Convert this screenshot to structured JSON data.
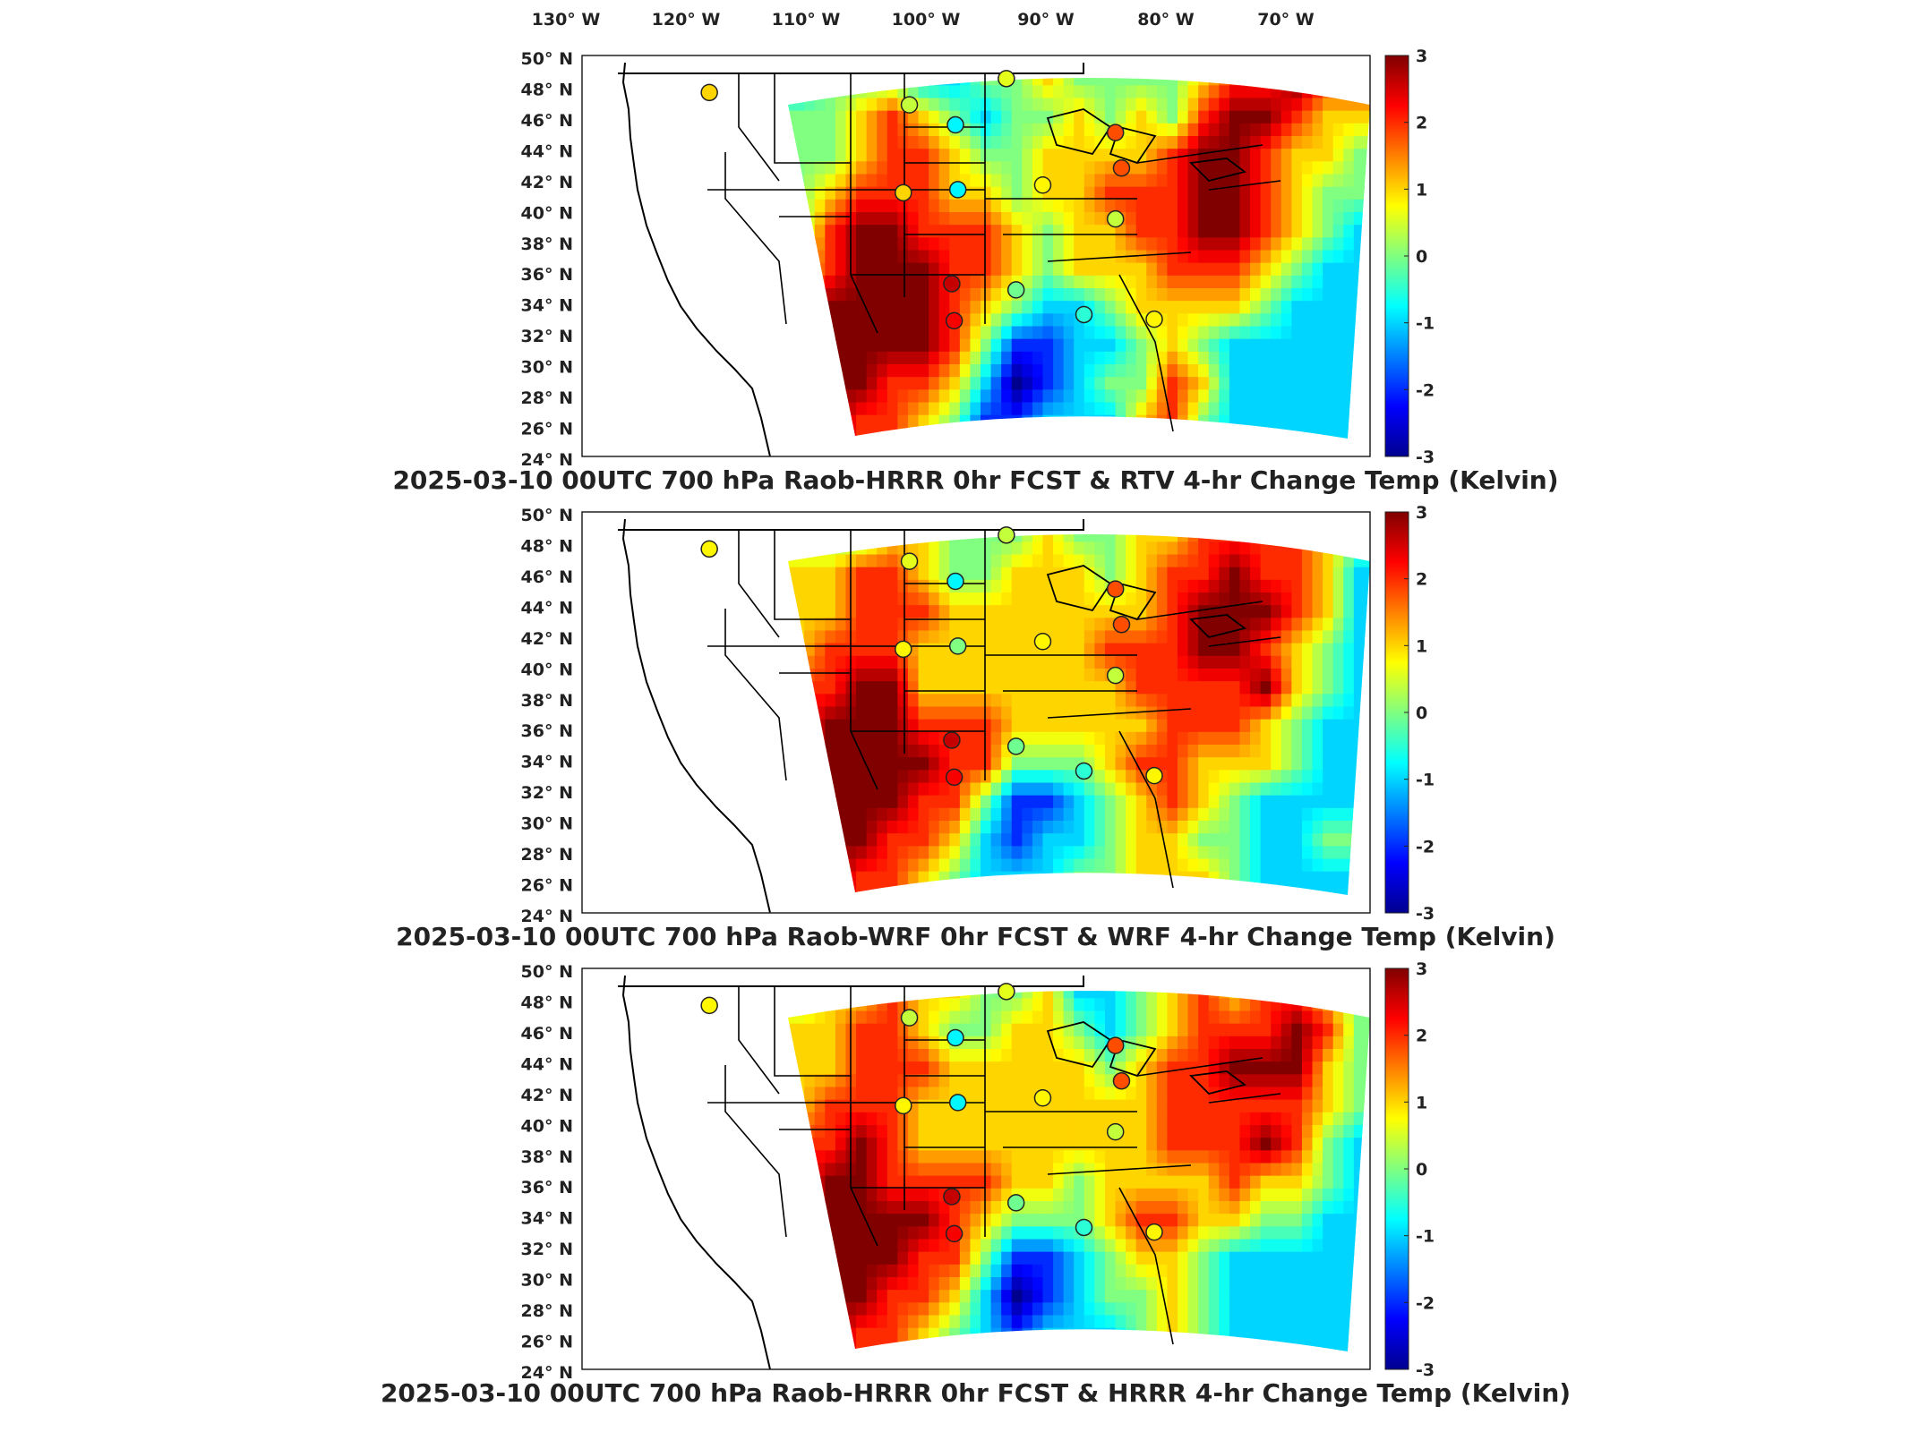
{
  "lon_labels": [
    "130° W",
    "120° W",
    "110° W",
    "100° W",
    "90° W",
    "80° W",
    "70° W"
  ],
  "lat_labels": [
    "50° N",
    "48° N",
    "46° N",
    "44° N",
    "42° N",
    "40° N",
    "38° N",
    "36° N",
    "34° N",
    "32° N",
    "30° N",
    "28° N",
    "26° N",
    "24° N"
  ],
  "colorbar": {
    "ticks": [
      "3",
      "2",
      "1",
      "0",
      "-1",
      "-2",
      "-3"
    ],
    "min": -3,
    "max": 3,
    "colors": [
      "#00008f",
      "#0000ff",
      "#0080ff",
      "#00ffff",
      "#80ff80",
      "#ffff00",
      "#ff8000",
      "#ff0000",
      "#800000"
    ]
  },
  "panels": [
    {
      "title": "2025-03-10 00UTC 700 hPa Raob-HRRR 0hr FCST & RTV 4-hr Change Temp (Kelvin)",
      "field": [
        [
          -1,
          0,
          0,
          0,
          -1,
          -1,
          0,
          0,
          1,
          0,
          0,
          0,
          0,
          1,
          2,
          2,
          3,
          2,
          2
        ],
        [
          0,
          0,
          1,
          2,
          1,
          0,
          -1,
          0,
          0,
          1,
          0,
          1,
          0,
          2,
          3,
          3,
          2,
          1,
          1
        ],
        [
          0,
          0,
          1,
          2,
          2,
          1,
          0,
          0,
          1,
          1,
          1,
          1,
          2,
          3,
          3,
          2,
          1,
          1,
          0
        ],
        [
          0,
          1,
          2,
          2,
          2,
          1,
          1,
          0,
          1,
          1,
          2,
          2,
          2,
          3,
          3,
          2,
          1,
          0,
          0
        ],
        [
          0,
          2,
          3,
          3,
          2,
          2,
          2,
          1,
          0,
          1,
          1,
          2,
          2,
          3,
          3,
          2,
          1,
          0,
          -1
        ],
        [
          1,
          2,
          3,
          3,
          3,
          2,
          2,
          1,
          0,
          1,
          1,
          1,
          2,
          2,
          2,
          1,
          0,
          -1,
          -1
        ],
        [
          2,
          3,
          3,
          3,
          3,
          2,
          1,
          0,
          -1,
          -1,
          0,
          1,
          1,
          1,
          1,
          0,
          -1,
          -1,
          -1
        ],
        [
          2,
          3,
          3,
          3,
          3,
          2,
          0,
          -2,
          -2,
          -1,
          -1,
          0,
          1,
          0,
          -1,
          -1,
          -1,
          -1,
          -1
        ],
        [
          2,
          3,
          3,
          2,
          2,
          1,
          -1,
          -3,
          -2,
          -1,
          0,
          0,
          2,
          1,
          -1,
          -1,
          -1,
          -1,
          -1
        ],
        [
          3,
          3,
          2,
          2,
          1,
          0,
          -2,
          -2,
          -1,
          -1,
          -1,
          1,
          2,
          0,
          -1,
          -1,
          -1,
          -1,
          -1
        ]
      ],
      "stations": [
        {
          "lon": -117.5,
          "lat": 47.6,
          "v": 1.0
        },
        {
          "lon": -101.0,
          "lat": 46.8,
          "v": 0.4
        },
        {
          "lon": -97.2,
          "lat": 45.5,
          "v": -0.8
        },
        {
          "lon": -93.0,
          "lat": 48.5,
          "v": 0.6
        },
        {
          "lon": -101.5,
          "lat": 41.1,
          "v": 1.0
        },
        {
          "lon": -97.0,
          "lat": 41.3,
          "v": -0.8
        },
        {
          "lon": -90.0,
          "lat": 41.6,
          "v": 0.8
        },
        {
          "lon": -84.0,
          "lat": 45.0,
          "v": 1.8
        },
        {
          "lon": -83.5,
          "lat": 42.7,
          "v": 1.8
        },
        {
          "lon": -84.0,
          "lat": 39.4,
          "v": 0.4
        },
        {
          "lon": -97.5,
          "lat": 35.2,
          "v": 2.6
        },
        {
          "lon": -97.3,
          "lat": 32.8,
          "v": 2.3
        },
        {
          "lon": -92.2,
          "lat": 34.8,
          "v": -0.1
        },
        {
          "lon": -86.6,
          "lat": 33.2,
          "v": -0.5
        },
        {
          "lon": -80.8,
          "lat": 32.9,
          "v": 0.8
        }
      ]
    },
    {
      "title": "2025-03-10 00UTC 700 hPa Raob-WRF 0hr FCST & WRF 4-hr Change Temp (Kelvin)",
      "field": [
        [
          0,
          0,
          0,
          1,
          1,
          0,
          0,
          0,
          1,
          0,
          0,
          1,
          1,
          2,
          2,
          2,
          2,
          1,
          0
        ],
        [
          1,
          1,
          2,
          2,
          1,
          0,
          0,
          1,
          1,
          1,
          0,
          1,
          2,
          2,
          3,
          2,
          2,
          1,
          -1
        ],
        [
          1,
          1,
          2,
          2,
          2,
          1,
          1,
          1,
          1,
          1,
          1,
          1,
          2,
          3,
          3,
          3,
          2,
          1,
          -1
        ],
        [
          1,
          2,
          2,
          2,
          1,
          1,
          1,
          1,
          1,
          1,
          2,
          2,
          2,
          3,
          3,
          2,
          1,
          0,
          -1
        ],
        [
          2,
          2,
          3,
          3,
          1,
          1,
          1,
          1,
          1,
          1,
          1,
          2,
          2,
          2,
          2,
          3,
          1,
          0,
          -1
        ],
        [
          2,
          3,
          3,
          3,
          2,
          2,
          2,
          1,
          1,
          1,
          1,
          1,
          2,
          2,
          2,
          1,
          0,
          -1,
          -1
        ],
        [
          2,
          3,
          3,
          3,
          3,
          2,
          2,
          0,
          0,
          0,
          1,
          2,
          2,
          1,
          1,
          1,
          0,
          -1,
          -1
        ],
        [
          2,
          3,
          3,
          3,
          2,
          2,
          0,
          -2,
          -2,
          -1,
          0,
          1,
          2,
          1,
          0,
          -1,
          -1,
          -1,
          -1
        ],
        [
          2,
          3,
          3,
          2,
          2,
          1,
          -1,
          -2,
          -1,
          -1,
          0,
          1,
          1,
          0,
          0,
          -1,
          -1,
          0,
          0
        ],
        [
          3,
          3,
          2,
          2,
          1,
          0,
          -1,
          -1,
          -1,
          0,
          0,
          1,
          1,
          1,
          0,
          -1,
          -1,
          -1,
          -1
        ]
      ],
      "stations": [
        {
          "lon": -117.5,
          "lat": 47.6,
          "v": 0.8
        },
        {
          "lon": -101.0,
          "lat": 46.8,
          "v": 0.6
        },
        {
          "lon": -97.2,
          "lat": 45.5,
          "v": -0.8
        },
        {
          "lon": -93.0,
          "lat": 48.5,
          "v": 0.4
        },
        {
          "lon": -101.5,
          "lat": 41.1,
          "v": 0.8
        },
        {
          "lon": -97.0,
          "lat": 41.3,
          "v": 0.0
        },
        {
          "lon": -90.0,
          "lat": 41.6,
          "v": 0.8
        },
        {
          "lon": -84.0,
          "lat": 45.0,
          "v": 1.8
        },
        {
          "lon": -83.5,
          "lat": 42.7,
          "v": 1.8
        },
        {
          "lon": -84.0,
          "lat": 39.4,
          "v": 0.4
        },
        {
          "lon": -97.5,
          "lat": 35.2,
          "v": 2.6
        },
        {
          "lon": -97.3,
          "lat": 32.8,
          "v": 2.3
        },
        {
          "lon": -92.2,
          "lat": 34.8,
          "v": -0.1
        },
        {
          "lon": -86.6,
          "lat": 33.2,
          "v": -0.5
        },
        {
          "lon": -80.8,
          "lat": 32.9,
          "v": 0.8
        }
      ]
    },
    {
      "title": "2025-03-10 00UTC 700 hPa Raob-HRRR 0hr FCST & HRRR 4-hr Change Temp (Kelvin)",
      "field": [
        [
          0,
          1,
          1,
          2,
          1,
          1,
          0,
          0,
          1,
          -1,
          -1,
          0,
          1,
          2,
          1,
          2,
          2,
          1,
          0
        ],
        [
          1,
          1,
          2,
          2,
          1,
          0,
          0,
          1,
          1,
          0,
          -1,
          0,
          1,
          2,
          2,
          2,
          3,
          2,
          0
        ],
        [
          1,
          1,
          2,
          2,
          2,
          1,
          1,
          1,
          1,
          1,
          0,
          1,
          2,
          2,
          3,
          3,
          3,
          1,
          0
        ],
        [
          1,
          2,
          2,
          2,
          1,
          1,
          1,
          1,
          1,
          1,
          1,
          1,
          2,
          2,
          2,
          2,
          2,
          1,
          0
        ],
        [
          2,
          2,
          3,
          2,
          1,
          1,
          1,
          1,
          1,
          1,
          1,
          1,
          2,
          2,
          2,
          3,
          2,
          0,
          -1
        ],
        [
          2,
          3,
          3,
          2,
          2,
          2,
          2,
          1,
          1,
          0,
          1,
          1,
          1,
          1,
          2,
          1,
          1,
          0,
          -1
        ],
        [
          2,
          3,
          3,
          3,
          3,
          2,
          1,
          0,
          0,
          0,
          1,
          2,
          2,
          1,
          1,
          0,
          0,
          -1,
          -1
        ],
        [
          2,
          3,
          3,
          3,
          2,
          2,
          0,
          -2,
          -2,
          -1,
          0,
          1,
          1,
          0,
          -1,
          -1,
          -1,
          -1,
          -1
        ],
        [
          2,
          3,
          3,
          2,
          2,
          1,
          -1,
          -3,
          -2,
          -1,
          0,
          0,
          1,
          0,
          -1,
          -1,
          -1,
          -1,
          -1
        ],
        [
          3,
          3,
          2,
          2,
          1,
          0,
          -1,
          -2,
          -1,
          -1,
          -1,
          0,
          1,
          0,
          -1,
          -1,
          -1,
          -1,
          -1
        ]
      ],
      "stations": [
        {
          "lon": -117.5,
          "lat": 47.6,
          "v": 0.8
        },
        {
          "lon": -101.0,
          "lat": 46.8,
          "v": 0.4
        },
        {
          "lon": -97.2,
          "lat": 45.5,
          "v": -0.8
        },
        {
          "lon": -93.0,
          "lat": 48.5,
          "v": 0.6
        },
        {
          "lon": -101.5,
          "lat": 41.1,
          "v": 0.8
        },
        {
          "lon": -97.0,
          "lat": 41.3,
          "v": -0.8
        },
        {
          "lon": -90.0,
          "lat": 41.6,
          "v": 0.8
        },
        {
          "lon": -84.0,
          "lat": 45.0,
          "v": 1.8
        },
        {
          "lon": -83.5,
          "lat": 42.7,
          "v": 1.8
        },
        {
          "lon": -84.0,
          "lat": 39.4,
          "v": 0.4
        },
        {
          "lon": -97.5,
          "lat": 35.2,
          "v": 2.6
        },
        {
          "lon": -97.3,
          "lat": 32.8,
          "v": 2.3
        },
        {
          "lon": -92.2,
          "lat": 34.8,
          "v": -0.1
        },
        {
          "lon": -86.6,
          "lat": 33.2,
          "v": -0.5
        },
        {
          "lon": -80.8,
          "lat": 32.9,
          "v": 0.8
        }
      ]
    }
  ]
}
